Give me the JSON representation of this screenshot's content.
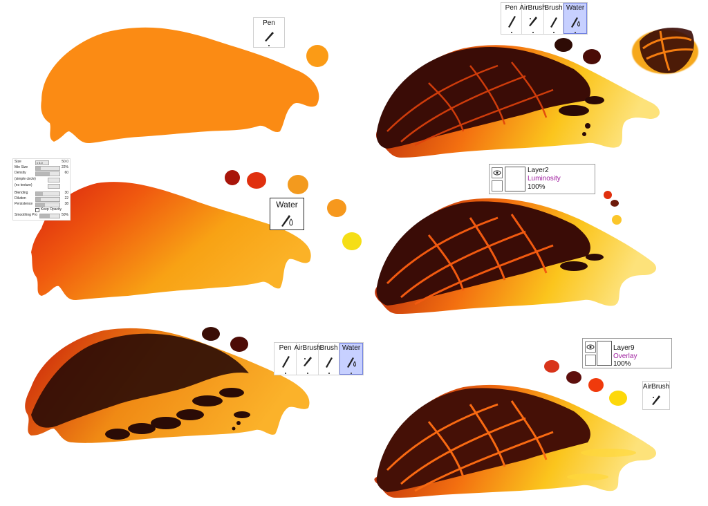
{
  "toolbars": {
    "pen_only": {
      "pen": "Pen"
    },
    "top_right": {
      "pen": "Pen",
      "airbrush": "AirBrush",
      "brush": "Brush",
      "water": "Water",
      "selected": "Water"
    },
    "water_only": {
      "water": "Water"
    },
    "bottom_mid": {
      "pen": "Pen",
      "airbrush": "AirBrush",
      "brush": "Brush",
      "water": "Water",
      "selected": "Water"
    },
    "airbrush_only": {
      "airbrush": "AirBrush"
    }
  },
  "layers": {
    "layer2": {
      "name": "Layer2",
      "mode": "Luminosity",
      "opacity": "100%"
    },
    "layer9": {
      "name": "Layer9",
      "mode": "Overlay",
      "opacity": "100%"
    }
  },
  "brush_settings": {
    "size": {
      "label": "Size",
      "multiplier": "x 5.0",
      "value": "50.0"
    },
    "min_size": {
      "label": "Min Size",
      "value": "22%"
    },
    "density": {
      "label": "Density",
      "value": "60"
    },
    "shape": {
      "label": "(simple circle)"
    },
    "texture": {
      "label": "(no texture)"
    },
    "blending": {
      "label": "Blending",
      "value": "30"
    },
    "dilution": {
      "label": "Dilution",
      "value": "22"
    },
    "persistence": {
      "label": "Persistence",
      "value": "38"
    },
    "keep_opacity": {
      "label": "Keep Opacity"
    },
    "smoothing": {
      "label": "Smoothing Pro",
      "value": "50%"
    }
  },
  "swatches": {
    "step1": [
      "#fb9b16"
    ],
    "step2": [
      "#a8150a",
      "#e0300e",
      "#f39a1e",
      "#f6981d",
      "#f5de16"
    ],
    "step3": [
      "#3a0d05",
      "#4d0b06"
    ],
    "step4": [
      "#2e0b05",
      "#4a0c07"
    ],
    "step5": [
      "#e0300e",
      "#6e1a0a",
      "#fbc62a"
    ],
    "step6": [
      "#d8341a",
      "#5d0f0d",
      "#f03a0c",
      "#fdd80a"
    ]
  },
  "colors": {
    "selected_tool_bg": "#c7d0ff",
    "layer_mode_text": "#a020a0"
  }
}
